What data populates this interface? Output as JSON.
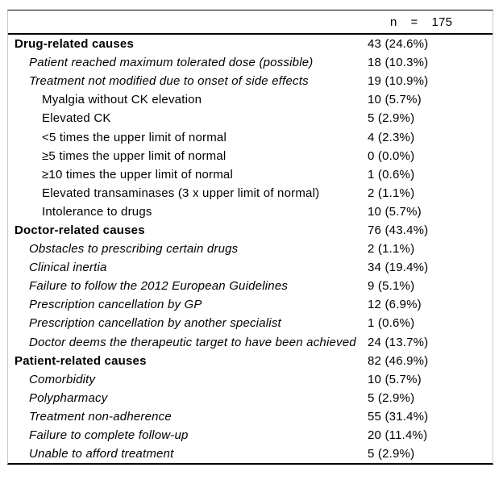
{
  "header": {
    "n_label": "n",
    "equals_sign": "=",
    "n_value": "175"
  },
  "colors": {
    "rule": "#000000",
    "side_border": "#c9c9c9",
    "text": "#000000",
    "background": "#ffffff"
  },
  "rows": [
    {
      "label": "Drug-related causes",
      "value": "43 (24.6%)",
      "level": 0,
      "emphasis": "bold"
    },
    {
      "label": "Patient reached maximum tolerated dose (possible)",
      "value": "18 (10.3%)",
      "level": 1,
      "emphasis": "italic"
    },
    {
      "label": "Treatment not modified due to onset of side effects",
      "value": "19 (10.9%)",
      "level": 1,
      "emphasis": "italic"
    },
    {
      "label": "Myalgia without CK elevation",
      "value": "10 (5.7%)",
      "level": 2,
      "emphasis": "normal"
    },
    {
      "label": "Elevated CK",
      "value": "5 (2.9%)",
      "level": 2,
      "emphasis": "normal"
    },
    {
      "label": "<5 times the upper limit of normal",
      "value": "4 (2.3%)",
      "level": 2,
      "emphasis": "normal"
    },
    {
      "label": "≥5 times the upper limit of normal",
      "value": "0 (0.0%)",
      "level": 2,
      "emphasis": "normal"
    },
    {
      "label": "≥10 times the upper limit of normal",
      "value": "1 (0.6%)",
      "level": 2,
      "emphasis": "normal"
    },
    {
      "label": "Elevated transaminases (3 x upper limit of normal)",
      "value": "2 (1.1%)",
      "level": 2,
      "emphasis": "normal"
    },
    {
      "label": "Intolerance to drugs",
      "value": "10 (5.7%)",
      "level": 2,
      "emphasis": "normal"
    },
    {
      "label": "Doctor-related causes",
      "value": "76 (43.4%)",
      "level": 0,
      "emphasis": "bold"
    },
    {
      "label": "Obstacles to prescribing certain drugs",
      "value": "2 (1.1%)",
      "level": 1,
      "emphasis": "italic"
    },
    {
      "label": "Clinical inertia",
      "value": "34 (19.4%)",
      "level": 1,
      "emphasis": "italic"
    },
    {
      "label": "Failure to follow the 2012 European Guidelines",
      "value": "9 (5.1%)",
      "level": 1,
      "emphasis": "italic"
    },
    {
      "label": "Prescription cancellation by GP",
      "value": "12 (6.9%)",
      "level": 1,
      "emphasis": "italic"
    },
    {
      "label": "Prescription cancellation by another specialist",
      "value": "1 (0.6%)",
      "level": 1,
      "emphasis": "italic"
    },
    {
      "label": "Doctor deems the therapeutic target to have been achieved",
      "value": "24 (13.7%)",
      "level": 1,
      "emphasis": "italic"
    },
    {
      "label": "Patient-related causes",
      "value": "82 (46.9%)",
      "level": 0,
      "emphasis": "bold"
    },
    {
      "label": "Comorbidity",
      "value": "10 (5.7%)",
      "level": 1,
      "emphasis": "italic"
    },
    {
      "label": "Polypharmacy",
      "value": "5 (2.9%)",
      "level": 1,
      "emphasis": "italic"
    },
    {
      "label": "Treatment non-adherence",
      "value": "55 (31.4%)",
      "level": 1,
      "emphasis": "italic"
    },
    {
      "label": "Failure to complete follow-up",
      "value": "20 (11.4%)",
      "level": 1,
      "emphasis": "italic"
    },
    {
      "label": "Unable to afford treatment",
      "value": "5 (2.9%)",
      "level": 1,
      "emphasis": "italic"
    }
  ]
}
